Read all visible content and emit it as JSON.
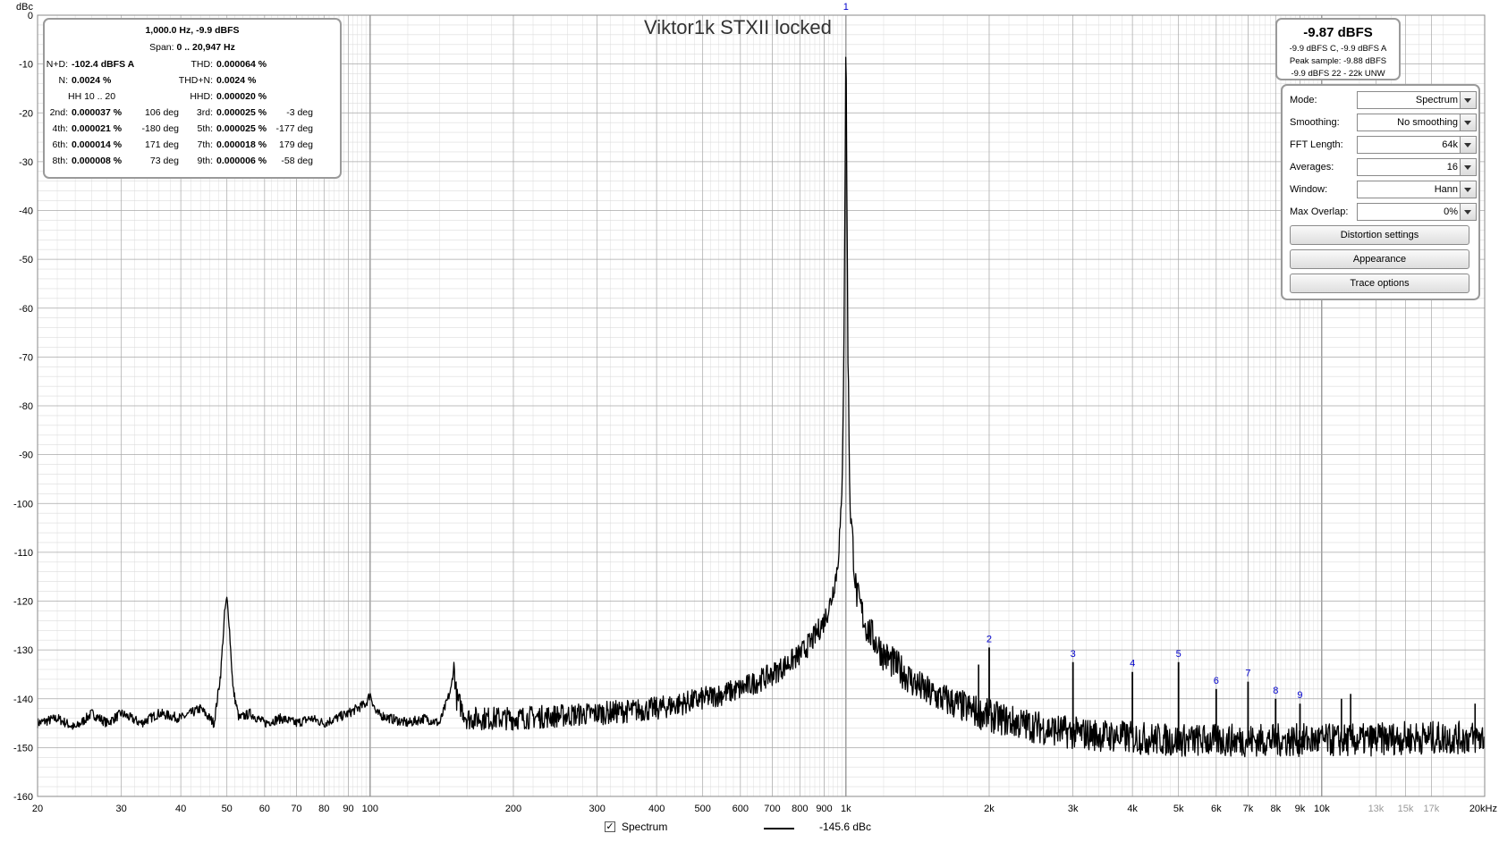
{
  "chart_data": {
    "type": "line",
    "title": "Viktor1k STXII locked",
    "ylabel": "dBc",
    "x_unit_label": "20kHz",
    "xscale": "log",
    "xlim": [
      20,
      22000
    ],
    "ylim": [
      -160,
      0
    ],
    "grid": true,
    "yticks": [
      0,
      -10,
      -20,
      -30,
      -40,
      -50,
      -60,
      -70,
      -80,
      -90,
      -100,
      -110,
      -120,
      -130,
      -140,
      -150,
      -160
    ],
    "xticks": [
      {
        "v": 20,
        "l": "20"
      },
      {
        "v": 30,
        "l": "30"
      },
      {
        "v": 40,
        "l": "40"
      },
      {
        "v": 50,
        "l": "50"
      },
      {
        "v": 60,
        "l": "60"
      },
      {
        "v": 70,
        "l": "70"
      },
      {
        "v": 80,
        "l": "80"
      },
      {
        "v": 90,
        "l": "90"
      },
      {
        "v": 100,
        "l": "100"
      },
      {
        "v": 200,
        "l": "200"
      },
      {
        "v": 300,
        "l": "300"
      },
      {
        "v": 400,
        "l": "400"
      },
      {
        "v": 500,
        "l": "500"
      },
      {
        "v": 600,
        "l": "600"
      },
      {
        "v": 700,
        "l": "700"
      },
      {
        "v": 800,
        "l": "800"
      },
      {
        "v": 900,
        "l": "900"
      },
      {
        "v": 1000,
        "l": "1k"
      },
      {
        "v": 2000,
        "l": "2k"
      },
      {
        "v": 3000,
        "l": "3k"
      },
      {
        "v": 4000,
        "l": "4k"
      },
      {
        "v": 5000,
        "l": "5k"
      },
      {
        "v": 6000,
        "l": "6k"
      },
      {
        "v": 7000,
        "l": "7k"
      },
      {
        "v": 8000,
        "l": "8k"
      },
      {
        "v": 9000,
        "l": "9k"
      },
      {
        "v": 10000,
        "l": "10k"
      }
    ],
    "xticks_minor": [
      {
        "v": 13000,
        "l": "13k"
      },
      {
        "v": 15000,
        "l": "15k"
      },
      {
        "v": 17000,
        "l": "17k"
      }
    ],
    "series": [
      {
        "name": "Spectrum",
        "color": "#000000",
        "x": [
          20,
          22,
          24,
          26,
          28,
          30,
          33,
          36,
          40,
          44,
          47,
          48.5,
          49.5,
          50,
          50.5,
          51.5,
          53,
          56,
          60,
          65,
          70,
          75,
          80,
          90,
          98,
          100,
          103,
          110,
          120,
          130,
          140,
          148,
          150,
          152,
          160,
          180,
          200,
          250,
          300,
          350,
          400,
          450,
          500,
          550,
          600,
          650,
          700,
          750,
          800,
          850,
          900,
          930,
          960,
          980,
          990,
          995,
          1000,
          1005,
          1010,
          1020,
          1050,
          1100,
          1200,
          1300,
          1400,
          1500,
          1600,
          1800,
          2000,
          2300,
          2600,
          3000,
          3500,
          4000,
          5000,
          6000,
          7000,
          8000,
          10000,
          12000,
          15000,
          18000,
          22000
        ],
        "y": [
          -145,
          -144,
          -146,
          -143,
          -145,
          -143,
          -145,
          -143,
          -144,
          -142,
          -145,
          -135,
          -122,
          -119.5,
          -124,
          -138,
          -144,
          -143,
          -145,
          -144,
          -145,
          -144,
          -145,
          -143,
          -141,
          -139,
          -143,
          -144,
          -145,
          -144,
          -145,
          -138,
          -133,
          -140,
          -144,
          -144,
          -144,
          -143.5,
          -143,
          -142.5,
          -142,
          -141,
          -140,
          -139,
          -138,
          -136.5,
          -135,
          -133,
          -131,
          -128,
          -124,
          -120,
          -113,
          -100,
          -70,
          -40,
          0,
          -40,
          -70,
          -100,
          -118,
          -125,
          -131,
          -134,
          -137,
          -139,
          -140,
          -142,
          -143.5,
          -145,
          -146,
          -147,
          -147.5,
          -148,
          -148.5,
          -148.5,
          -148.5,
          -148.5,
          -148.5,
          -148.5,
          -148,
          -148,
          -148
        ]
      }
    ],
    "harmonics": [
      {
        "label": "1",
        "x": 1000,
        "y": 0
      },
      {
        "label": "2",
        "x": 2000,
        "y": -129.5
      },
      {
        "label": "3",
        "x": 3000,
        "y": -132.5
      },
      {
        "label": "4",
        "x": 4000,
        "y": -134.5
      },
      {
        "label": "5",
        "x": 5000,
        "y": -132.5
      },
      {
        "label": "6",
        "x": 6000,
        "y": -138
      },
      {
        "label": "7",
        "x": 7000,
        "y": -136.5
      },
      {
        "label": "8",
        "x": 8000,
        "y": -140
      },
      {
        "label": "9",
        "x": 9000,
        "y": -141
      }
    ],
    "spurs": [
      {
        "x": 1900,
        "y": -133
      },
      {
        "x": 11000,
        "y": -140
      },
      {
        "x": 11500,
        "y": -139
      },
      {
        "x": 21000,
        "y": -141
      }
    ]
  },
  "stats": {
    "header1": "1,000.0 Hz, -9.9 dBFS",
    "span_label": "Span:",
    "span_value": "0 .. 20,947 Hz",
    "nd_label": "N+D:",
    "nd_value": "-102.4 dBFS A",
    "thd_label": "THD:",
    "thd_value": "0.000064 %",
    "n_label": "N:",
    "n_value": "0.0024 %",
    "thdn_label": "THD+N:",
    "thdn_value": "0.0024 %",
    "hh_label": "HH 10 .. 20",
    "hhd_label": "HHD:",
    "hhd_value": "0.000020 %",
    "harmonics": [
      {
        "l1": "2nd:",
        "v1": "0.000037 %",
        "d1": "106 deg",
        "l2": "3rd:",
        "v2": "0.000025 %",
        "d2": "-3 deg"
      },
      {
        "l1": "4th:",
        "v1": "0.000021 %",
        "d1": "-180 deg",
        "l2": "5th:",
        "v2": "0.000025 %",
        "d2": "-177 deg"
      },
      {
        "l1": "6th:",
        "v1": "0.000014 %",
        "d1": "171 deg",
        "l2": "7th:",
        "v2": "0.000018 %",
        "d2": "179 deg"
      },
      {
        "l1": "8th:",
        "v1": "0.000008 %",
        "d1": "73 deg",
        "l2": "9th:",
        "v2": "0.000006 %",
        "d2": "-58 deg"
      }
    ]
  },
  "level": {
    "main": "-9.87 dBFS",
    "line1": "-9.9 dBFS C, -9.9 dBFS A",
    "line2": "Peak sample: -9.88 dBFS",
    "line3": "-9.9 dBFS 22 - 22k UNW"
  },
  "controls": {
    "mode_label": "Mode:",
    "mode_value": "Spectrum",
    "smoothing_label": "Smoothing:",
    "smoothing_value": "No  smoothing",
    "fft_label": "FFT Length:",
    "fft_value": "64k",
    "averages_label": "Averages:",
    "averages_value": "16",
    "window_label": "Window:",
    "window_value": "Hann",
    "overlap_label": "Max Overlap:",
    "overlap_value": "0%",
    "distortion_button": "Distortion settings",
    "appearance_button": "Appearance",
    "trace_button": "Trace options"
  },
  "legend": {
    "checkbox_mark": "✓",
    "series_name": "Spectrum",
    "series_value": "-145.6 dBc"
  },
  "colors": {
    "harmonic_label": "#0000cc",
    "grid_major": "#a8a8a8",
    "grid_minor": "#dcdcdc",
    "trace": "#000000"
  }
}
